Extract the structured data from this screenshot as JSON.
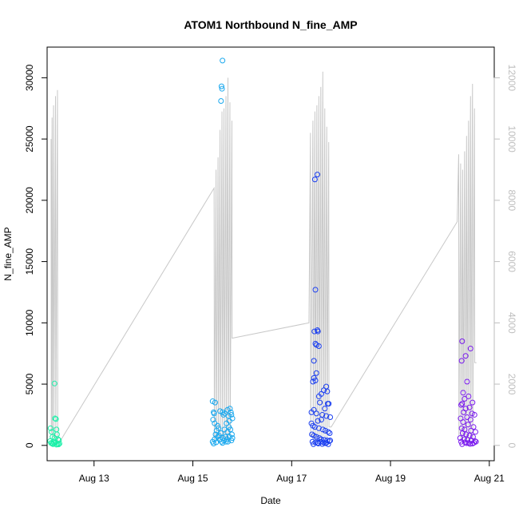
{
  "chart_data": {
    "type": "scatter",
    "title": "ATOM1 Northbound N_fine_AMP",
    "xlabel": "Date",
    "ylabel": "N_fine_AMP",
    "x_ticks": [
      "Aug 13",
      "Aug 15",
      "Aug 17",
      "Aug 19",
      "Aug 21"
    ],
    "x_tick_values": [
      13,
      15,
      17,
      19,
      21
    ],
    "xlim": [
      12.05,
      21.1
    ],
    "y_ticks": [
      0,
      5000,
      10000,
      15000,
      20000,
      25000,
      30000
    ],
    "ylim": [
      -1250,
      32500
    ],
    "y2_ticks": [
      0,
      2000,
      4000,
      6000,
      8000,
      10000,
      12000
    ],
    "y2lim": [
      -500,
      13000
    ],
    "colors": {
      "line": "#c8c8c8",
      "right_axis": "#bebebe",
      "axis": "#000000",
      "clusters": [
        "#1af0a8",
        "#1aa8ee",
        "#1a3ef0",
        "#7a1aee"
      ]
    },
    "series": [
      {
        "type": "points",
        "axis": "left",
        "clusters": [
          {
            "color": "#1af0a8",
            "points": [
              [
                12.12,
                1400
              ],
              [
                12.14,
                1100
              ],
              [
                12.16,
                700
              ],
              [
                12.18,
                300
              ],
              [
                12.2,
                5050
              ],
              [
                12.21,
                2200
              ],
              [
                12.23,
                2150
              ],
              [
                12.24,
                1300
              ],
              [
                12.25,
                900
              ],
              [
                12.27,
                500
              ],
              [
                12.13,
                200
              ],
              [
                12.15,
                150
              ],
              [
                12.17,
                100
              ],
              [
                12.19,
                180
              ],
              [
                12.22,
                250
              ],
              [
                12.26,
                120
              ],
              [
                12.28,
                80
              ],
              [
                12.3,
                150
              ],
              [
                12.11,
                350
              ],
              [
                12.29,
                420
              ],
              [
                12.2,
                600
              ],
              [
                12.24,
                60
              ]
            ]
          },
          {
            "color": "#1aa8ee",
            "points": [
              [
                15.6,
                31400
              ],
              [
                15.58,
                29300
              ],
              [
                15.59,
                29100
              ],
              [
                15.57,
                28100
              ],
              [
                15.4,
                3600
              ],
              [
                15.45,
                3500
              ],
              [
                15.42,
                2700
              ],
              [
                15.43,
                2600
              ],
              [
                15.41,
                2100
              ],
              [
                15.44,
                1800
              ],
              [
                15.55,
                2800
              ],
              [
                15.6,
                2700
              ],
              [
                15.62,
                2500
              ],
              [
                15.65,
                2600
              ],
              [
                15.7,
                2900
              ],
              [
                15.72,
                2400
              ],
              [
                15.75,
                3000
              ],
              [
                15.78,
                2500
              ],
              [
                15.8,
                2200
              ],
              [
                15.77,
                2700
              ],
              [
                15.74,
                2000
              ],
              [
                15.68,
                1800
              ],
              [
                15.5,
                1600
              ],
              [
                15.52,
                1400
              ],
              [
                15.48,
                1200
              ],
              [
                15.46,
                900
              ],
              [
                15.5,
                700
              ],
              [
                15.55,
                500
              ],
              [
                15.58,
                300
              ],
              [
                15.6,
                200
              ],
              [
                15.63,
                400
              ],
              [
                15.66,
                700
              ],
              [
                15.7,
                1100
              ],
              [
                15.73,
                1500
              ],
              [
                15.76,
                1300
              ],
              [
                15.79,
                900
              ],
              [
                15.8,
                600
              ],
              [
                15.78,
                400
              ],
              [
                15.71,
                300
              ],
              [
                15.69,
                500
              ],
              [
                15.4,
                300
              ],
              [
                15.42,
                150
              ],
              [
                15.44,
                500
              ],
              [
                15.47,
                250
              ],
              [
                15.53,
                800
              ],
              [
                15.57,
                1000
              ],
              [
                15.61,
                600
              ],
              [
                15.64,
                1300
              ],
              [
                15.67,
                300
              ],
              [
                15.74,
                700
              ]
            ]
          },
          {
            "color": "#1a3ef0",
            "points": [
              [
                17.52,
                22100
              ],
              [
                17.47,
                21700
              ],
              [
                17.48,
                12700
              ],
              [
                17.46,
                9300
              ],
              [
                17.52,
                9400
              ],
              [
                17.53,
                9300
              ],
              [
                17.48,
                8300
              ],
              [
                17.5,
                8200
              ],
              [
                17.55,
                8100
              ],
              [
                17.45,
                6900
              ],
              [
                17.5,
                5900
              ],
              [
                17.45,
                5500
              ],
              [
                17.48,
                5300
              ],
              [
                17.43,
                5200
              ],
              [
                17.7,
                4800
              ],
              [
                17.65,
                4500
              ],
              [
                17.72,
                4400
              ],
              [
                17.6,
                4200
              ],
              [
                17.55,
                4000
              ],
              [
                17.57,
                3500
              ],
              [
                17.75,
                3400
              ],
              [
                17.73,
                3400
              ],
              [
                17.67,
                3000
              ],
              [
                17.4,
                2700
              ],
              [
                17.45,
                2900
              ],
              [
                17.5,
                2600
              ],
              [
                17.62,
                2500
              ],
              [
                17.7,
                2400
              ],
              [
                17.78,
                2300
              ],
              [
                17.6,
                2100
              ],
              [
                17.53,
                2000
              ],
              [
                17.4,
                1800
              ],
              [
                17.43,
                1600
              ],
              [
                17.47,
                1500
              ],
              [
                17.55,
                1400
              ],
              [
                17.63,
                1300
              ],
              [
                17.68,
                1200
              ],
              [
                17.74,
                1100
              ],
              [
                17.77,
                1000
              ],
              [
                17.41,
                900
              ],
              [
                17.45,
                800
              ],
              [
                17.5,
                700
              ],
              [
                17.56,
                600
              ],
              [
                17.6,
                500
              ],
              [
                17.66,
                450
              ],
              [
                17.72,
                400
              ],
              [
                17.76,
                350
              ],
              [
                17.42,
                300
              ],
              [
                17.48,
                250
              ],
              [
                17.52,
                200
              ],
              [
                17.58,
                300
              ],
              [
                17.64,
                250
              ],
              [
                17.7,
                200
              ],
              [
                17.44,
                100
              ],
              [
                17.54,
                150
              ],
              [
                17.62,
                120
              ],
              [
                17.68,
                180
              ],
              [
                17.74,
                90
              ],
              [
                17.78,
                400
              ]
            ]
          },
          {
            "color": "#7a1aee",
            "points": [
              [
                20.45,
                8500
              ],
              [
                20.62,
                7900
              ],
              [
                20.52,
                7300
              ],
              [
                20.44,
                6900
              ],
              [
                20.55,
                5200
              ],
              [
                20.47,
                4300
              ],
              [
                20.58,
                4000
              ],
              [
                20.5,
                3800
              ],
              [
                20.45,
                3400
              ],
              [
                20.43,
                3300
              ],
              [
                20.66,
                3500
              ],
              [
                20.6,
                3100
              ],
              [
                20.52,
                3000
              ],
              [
                20.48,
                2700
              ],
              [
                20.65,
                2600
              ],
              [
                20.42,
                2200
              ],
              [
                20.55,
                2300
              ],
              [
                20.7,
                2500
              ],
              [
                20.62,
                2100
              ],
              [
                20.47,
                1900
              ],
              [
                20.57,
                1700
              ],
              [
                20.68,
                1500
              ],
              [
                20.44,
                1400
              ],
              [
                20.5,
                1300
              ],
              [
                20.63,
                1200
              ],
              [
                20.72,
                1100
              ],
              [
                20.46,
                1000
              ],
              [
                20.53,
                900
              ],
              [
                20.6,
                800
              ],
              [
                20.67,
                700
              ],
              [
                20.41,
                600
              ],
              [
                20.49,
                500
              ],
              [
                20.56,
                450
              ],
              [
                20.64,
                400
              ],
              [
                20.71,
                350
              ],
              [
                20.43,
                300
              ],
              [
                20.51,
                250
              ],
              [
                20.58,
                200
              ],
              [
                20.66,
                150
              ],
              [
                20.73,
                300
              ],
              [
                20.45,
                100
              ],
              [
                20.54,
                180
              ],
              [
                20.61,
                120
              ],
              [
                20.69,
                220
              ]
            ]
          }
        ]
      },
      {
        "type": "line",
        "axis": "right",
        "color": "#c8c8c8",
        "x": [
          12.13,
          12.135,
          12.15,
          12.155,
          12.18,
          12.185,
          12.22,
          12.225,
          12.26,
          12.265,
          12.3,
          15.43,
          15.435,
          15.47,
          15.475,
          15.51,
          15.515,
          15.55,
          15.555,
          15.59,
          15.595,
          15.63,
          15.635,
          15.67,
          15.675,
          15.71,
          15.715,
          15.75,
          15.755,
          15.79,
          15.795,
          15.8,
          17.35,
          17.38,
          17.385,
          17.43,
          17.435,
          17.47,
          17.475,
          17.51,
          17.515,
          17.55,
          17.555,
          17.59,
          17.595,
          17.63,
          17.635,
          17.67,
          17.675,
          17.71,
          17.715,
          17.75,
          17.755,
          17.8,
          20.35,
          20.38,
          20.385,
          20.42,
          20.425,
          20.46,
          20.465,
          20.5,
          20.505,
          20.54,
          20.545,
          20.58,
          20.585,
          20.62,
          20.625,
          20.66,
          20.665,
          20.7,
          20.705,
          20.74
        ],
        "y": [
          10000,
          400,
          10700,
          300,
          11100,
          200,
          11400,
          150,
          11600,
          100,
          100,
          8400,
          200,
          9000,
          150,
          9400,
          100,
          10300,
          200,
          10900,
          150,
          11000,
          100,
          11400,
          200,
          12000,
          150,
          11200,
          300,
          10600,
          3500,
          3500,
          4000,
          10200,
          300,
          10600,
          200,
          10900,
          150,
          11100,
          100,
          11400,
          200,
          11700,
          150,
          12200,
          300,
          11000,
          200,
          10400,
          150,
          9900,
          600,
          600,
          7300,
          9500,
          300,
          9200,
          200,
          9000,
          150,
          9600,
          100,
          10100,
          200,
          10600,
          150,
          11400,
          200,
          11800,
          150,
          11000,
          2700,
          2700
        ]
      }
    ]
  }
}
